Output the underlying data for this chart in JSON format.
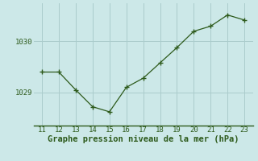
{
  "x": [
    11,
    12,
    13,
    14,
    15,
    16,
    17,
    18,
    19,
    20,
    21,
    22,
    23
  ],
  "y": [
    1029.4,
    1029.4,
    1029.05,
    1028.72,
    1028.62,
    1029.1,
    1029.28,
    1029.58,
    1029.88,
    1030.2,
    1030.3,
    1030.52,
    1030.42
  ],
  "line_color": "#2d5a1b",
  "marker_color": "#2d5a1b",
  "bg_color": "#cce8e8",
  "grid_color": "#aacccc",
  "border_color": "#2d5a1b",
  "xlabel": "Graphe pression niveau de la mer (hPa)",
  "xlabel_color": "#2d5a1b",
  "ytick_labels": [
    "1029",
    "1030"
  ],
  "ytick_values": [
    1029.0,
    1030.0
  ],
  "ylim": [
    1028.35,
    1030.75
  ],
  "xlim": [
    10.5,
    23.5
  ],
  "xtick_values": [
    11,
    12,
    13,
    14,
    15,
    16,
    17,
    18,
    19,
    20,
    21,
    22,
    23
  ],
  "tick_fontsize": 6.5,
  "xlabel_fontsize": 7.5
}
